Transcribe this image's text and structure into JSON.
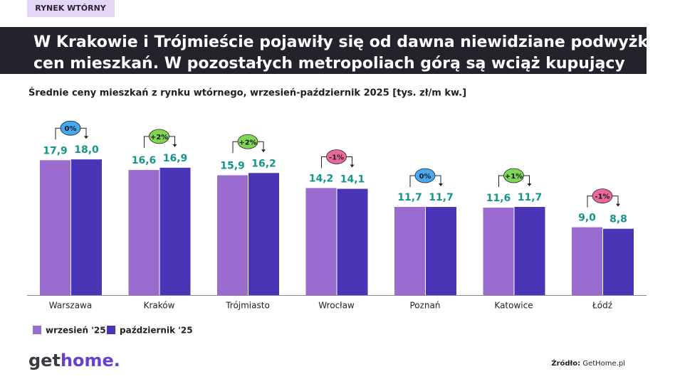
{
  "tag": "RYNEK WTÓRNY",
  "headline": [
    "W Krakowie i Trójmieście pojawiły się od dawna niewidziane podwyżki",
    "cen mieszkań. W pozostałych metropoliach górą są wciąż kupujący"
  ],
  "chart_data": {
    "type": "bar",
    "title": "Średnie ceny mieszkań z rynku wtórnego, wrzesień-październik 2025 [tys. zł/m kw.]",
    "categories": [
      "Warszawa",
      "Kraków",
      "Trójmiasto",
      "Wrocław",
      "Poznań",
      "Katowice",
      "Łódź"
    ],
    "series": [
      {
        "name": "wrzesień '25",
        "color": "#9a6cd0",
        "values": [
          17.9,
          16.6,
          15.9,
          14.2,
          11.7,
          11.6,
          9.0
        ],
        "value_labels": [
          "17,9",
          "16,6",
          "15,9",
          "14,2",
          "11,7",
          "11,6",
          "9,0"
        ]
      },
      {
        "name": "październik '25",
        "color": "#4b34b6",
        "values": [
          18.0,
          16.9,
          16.2,
          14.1,
          11.7,
          11.7,
          8.8
        ],
        "value_labels": [
          "18,0",
          "16,9",
          "16,2",
          "14,1",
          "11,7",
          "11,7",
          "8,8"
        ]
      }
    ],
    "changes": [
      0,
      2,
      2,
      -1,
      0,
      1,
      -1
    ],
    "change_labels": [
      "0%",
      "+2%",
      "+2%",
      "-1%",
      "0%",
      "+1%",
      "-1%"
    ],
    "value_label_color": "#13968a"
  },
  "logo": {
    "part1": "get",
    "part2": "home."
  },
  "source": {
    "label": "Źródło:",
    "text": "GetHome.pl"
  }
}
